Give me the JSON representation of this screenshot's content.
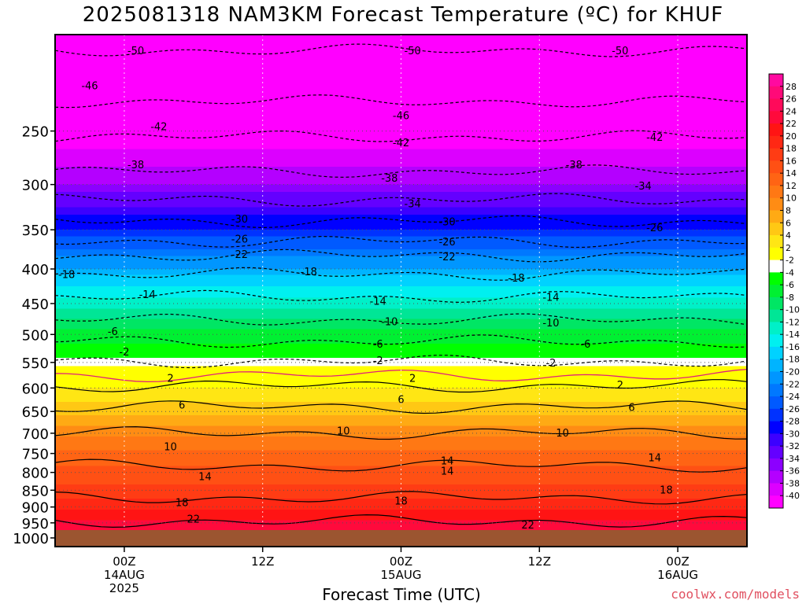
{
  "title": "2025081318 NAM3KM Forecast Temperature (ºC) for KHUF",
  "credit": "coolwx.com/models",
  "chart_data": {
    "type": "heatmap",
    "title": "2025081318 NAM3KM Forecast Temperature (ºC) for KHUF",
    "xlabel": "Forecast Time (UTC)",
    "ylabel": "",
    "x_range_hours": [
      -6,
      54
    ],
    "y_range_hpa": [
      1030,
      180
    ],
    "y_ticks": [
      250,
      300,
      350,
      400,
      450,
      500,
      550,
      600,
      650,
      700,
      750,
      800,
      850,
      900,
      950,
      1000
    ],
    "x_ticks": [
      {
        "hour": 0,
        "lines": [
          "00Z",
          "14AUG",
          "2025"
        ]
      },
      {
        "hour": 12,
        "lines": [
          "12Z"
        ]
      },
      {
        "hour": 24,
        "lines": [
          "00Z",
          "15AUG"
        ]
      },
      {
        "hour": 36,
        "lines": [
          "12Z"
        ]
      },
      {
        "hour": 48,
        "lines": [
          "00Z",
          "16AUG"
        ]
      }
    ],
    "grid": true,
    "legend_placement": "right",
    "colorbar_labels": [
      28,
      26,
      24,
      22,
      20,
      18,
      16,
      14,
      12,
      10,
      8,
      6,
      4,
      2,
      -2,
      -4,
      -6,
      -8,
      -10,
      -12,
      -14,
      -16,
      -18,
      -20,
      -22,
      -24,
      -26,
      -28,
      -30,
      -32,
      -34,
      -36,
      -38,
      -40
    ],
    "colorbar_colors": [
      "#ff0aa0",
      "#ff0a78",
      "#ff0a5a",
      "#ff0a3c",
      "#ff1414",
      "#ff2814",
      "#ff3c14",
      "#ff5014",
      "#ff6414",
      "#ff7814",
      "#ff8c14",
      "#ffaa14",
      "#ffc814",
      "#ffe614",
      "#ffff00",
      "#ffffff",
      "#00ff00",
      "#00f032",
      "#00e664",
      "#00e696",
      "#00f0c8",
      "#00f0f0",
      "#00d2ff",
      "#00b4ff",
      "#0096ff",
      "#0078ff",
      "#005aff",
      "#0032ff",
      "#0000ff",
      "#3c00ff",
      "#6400ff",
      "#8c00ff",
      "#b400ff",
      "#dc00ff",
      "#ff00ff"
    ],
    "contour_labels": [
      {
        "v": "-50",
        "t": 1.0,
        "p": 190
      },
      {
        "v": "-50",
        "t": 25.0,
        "p": 190
      },
      {
        "v": "-50",
        "t": 43.0,
        "p": 190
      },
      {
        "v": "-46",
        "t": -3.0,
        "p": 214
      },
      {
        "v": "-46",
        "t": 24.0,
        "p": 237
      },
      {
        "v": "-42",
        "t": 3.0,
        "p": 246
      },
      {
        "v": "-42",
        "t": 24.0,
        "p": 260
      },
      {
        "v": "-42",
        "t": 46.0,
        "p": 255
      },
      {
        "v": "-38",
        "t": 1.0,
        "p": 280
      },
      {
        "v": "-38",
        "t": 23.0,
        "p": 293
      },
      {
        "v": "-38",
        "t": 39.0,
        "p": 280
      },
      {
        "v": "-34",
        "t": 25.0,
        "p": 320
      },
      {
        "v": "-34",
        "t": 45.0,
        "p": 301
      },
      {
        "v": "-30",
        "t": 10.0,
        "p": 337
      },
      {
        "v": "-30",
        "t": 28.0,
        "p": 340
      },
      {
        "v": "-26",
        "t": 10.0,
        "p": 361
      },
      {
        "v": "-26",
        "t": 28.0,
        "p": 364
      },
      {
        "v": "-26",
        "t": 46.0,
        "p": 347
      },
      {
        "v": "-22",
        "t": 10.0,
        "p": 380
      },
      {
        "v": "-22",
        "t": 28.0,
        "p": 383
      },
      {
        "v": "-18",
        "t": -5.0,
        "p": 407
      },
      {
        "v": "-18",
        "t": 16.0,
        "p": 403
      },
      {
        "v": "-18",
        "t": 34.0,
        "p": 412
      },
      {
        "v": "-14",
        "t": 2.0,
        "p": 436
      },
      {
        "v": "-14",
        "t": 22.0,
        "p": 446
      },
      {
        "v": "-14",
        "t": 37.0,
        "p": 440
      },
      {
        "v": "-10",
        "t": 23.0,
        "p": 478
      },
      {
        "v": "-10",
        "t": 37.0,
        "p": 480
      },
      {
        "v": "-6",
        "t": -1.0,
        "p": 494
      },
      {
        "v": "-6",
        "t": 40.0,
        "p": 516
      },
      {
        "v": "-6",
        "t": 22.0,
        "p": 516
      },
      {
        "v": "-2",
        "t": 0.0,
        "p": 530
      },
      {
        "v": "-2",
        "t": 22.0,
        "p": 546
      },
      {
        "v": "-2",
        "t": 37.0,
        "p": 550
      },
      {
        "v": "2",
        "t": 4.0,
        "p": 580
      },
      {
        "v": "2",
        "t": 25.0,
        "p": 580
      },
      {
        "v": "2",
        "t": 43.0,
        "p": 593
      },
      {
        "v": "6",
        "t": 5.0,
        "p": 635
      },
      {
        "v": "6",
        "t": 24.0,
        "p": 623
      },
      {
        "v": "6",
        "t": 44.0,
        "p": 640
      },
      {
        "v": "10",
        "t": 4.0,
        "p": 732
      },
      {
        "v": "10",
        "t": 19.0,
        "p": 694
      },
      {
        "v": "10",
        "t": 38.0,
        "p": 698
      },
      {
        "v": "14",
        "t": 7.0,
        "p": 810
      },
      {
        "v": "14",
        "t": 28.0,
        "p": 768
      },
      {
        "v": "14",
        "t": 28.0,
        "p": 795
      },
      {
        "v": "14",
        "t": 46.0,
        "p": 760
      },
      {
        "v": "18",
        "t": 5.0,
        "p": 885
      },
      {
        "v": "18",
        "t": 24.0,
        "p": 880
      },
      {
        "v": "18",
        "t": 47.0,
        "p": 848
      },
      {
        "v": "22",
        "t": 6.0,
        "p": 937
      },
      {
        "v": "22",
        "t": 35.0,
        "p": 955
      }
    ]
  }
}
